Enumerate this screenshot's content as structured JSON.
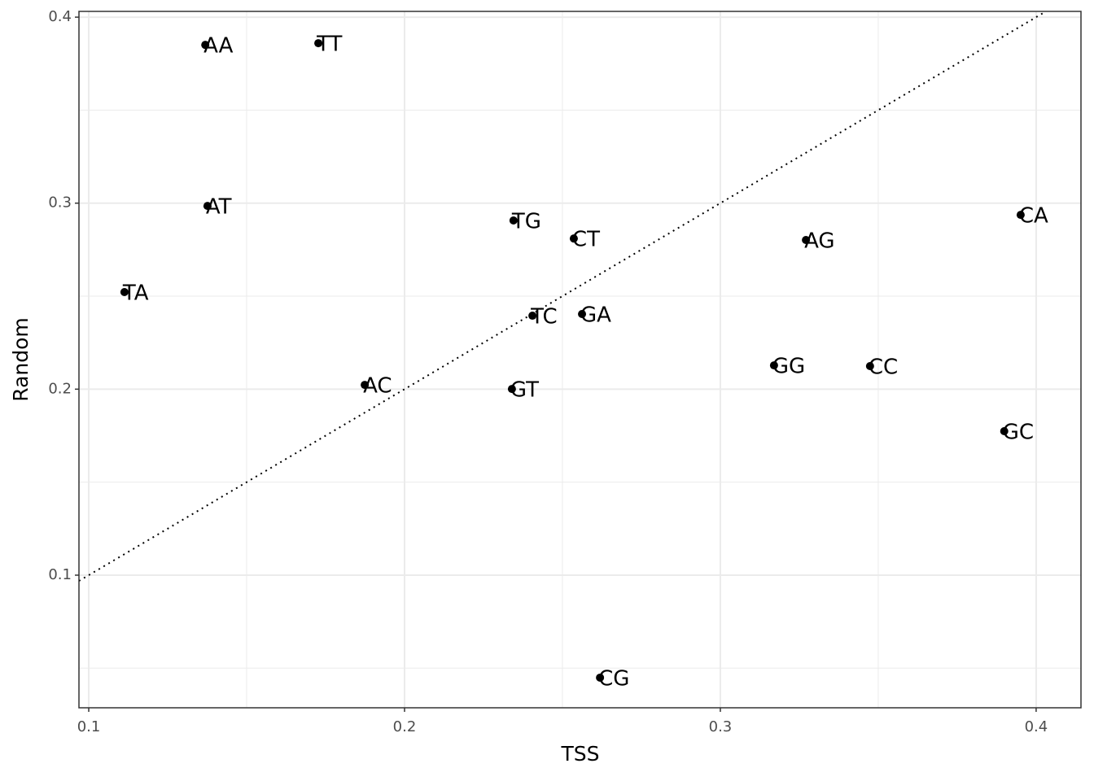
{
  "chart_data": {
    "type": "scatter",
    "x_label": "TSS",
    "y_label": "Random",
    "labels": [
      "AA",
      "TT",
      "AT",
      "TA",
      "AC",
      "TG",
      "CT",
      "TC",
      "GA",
      "GT",
      "CG",
      "AG",
      "GG",
      "CC",
      "GC",
      "CA"
    ],
    "x": [
      0.1369,
      0.1727,
      0.1376,
      0.1113,
      0.1874,
      0.2345,
      0.2536,
      0.2405,
      0.2562,
      0.234,
      0.2619,
      0.3271,
      0.317,
      0.3474,
      0.3899,
      0.3951
    ],
    "y": [
      0.3851,
      0.386,
      0.2985,
      0.2522,
      0.2023,
      0.2907,
      0.281,
      0.2395,
      0.2404,
      0.2001,
      0.0449,
      0.2802,
      0.2128,
      0.2124,
      0.1774,
      0.2937
    ],
    "color": "#000000",
    "xlim": [
      0.0969,
      0.4142
    ],
    "ylim": [
      0.0287,
      0.4031
    ],
    "xticks": [
      0.1,
      0.2,
      0.3,
      0.4
    ],
    "yticks": [
      0.1,
      0.2,
      0.3,
      0.4
    ],
    "grid": true,
    "identity_line": true
  }
}
